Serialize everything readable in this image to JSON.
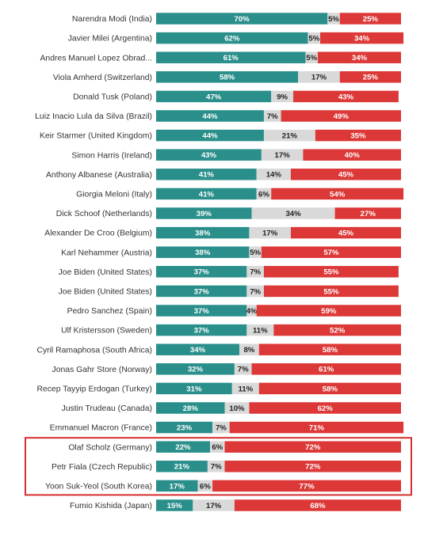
{
  "chart_data": {
    "type": "bar",
    "stacked": true,
    "orientation": "horizontal",
    "colors": {
      "approve": "#2a8f8b",
      "neutral": "#d9d9d9",
      "disapprove": "#dd3838",
      "highlight_border": "#d62e2e"
    },
    "categories": [
      "Narendra Modi (India)",
      "Javier Milei (Argentina)",
      "Andres Manuel Lopez Obrad...",
      "Viola Amherd (Switzerland)",
      "Donald Tusk (Poland)",
      "Luiz Inacio Lula da Silva (Brazil)",
      "Keir Starmer (United Kingdom)",
      "Simon Harris (Ireland)",
      "Anthony Albanese (Australia)",
      "Giorgia Meloni (Italy)",
      "Dick Schoof (Netherlands)",
      "Alexander De Croo (Belgium)",
      "Karl Nehammer (Austria)",
      "Joe Biden (United States)",
      "Joe Biden (United States)",
      "Pedro Sanchez (Spain)",
      "Ulf Kristersson (Sweden)",
      "Cyril Ramaphosa (South Africa)",
      "Jonas Gahr Store (Norway)",
      "Recep Tayyip Erdogan (Turkey)",
      "Justin Trudeau (Canada)",
      "Emmanuel Macron (France)",
      "Olaf Scholz (Germany)",
      "Petr Fiala (Czech Republic)",
      "Yoon Suk-Yeol (South Korea)",
      "Fumio Kishida (Japan)"
    ],
    "series": [
      {
        "values": [
          70,
          62,
          61,
          58,
          47,
          44,
          44,
          43,
          41,
          41,
          39,
          38,
          38,
          37,
          37,
          37,
          37,
          34,
          32,
          31,
          28,
          23,
          22,
          21,
          17,
          15
        ]
      },
      {
        "values": [
          5,
          5,
          5,
          17,
          9,
          7,
          21,
          17,
          14,
          6,
          34,
          17,
          5,
          7,
          7,
          4,
          11,
          8,
          7,
          11,
          10,
          7,
          6,
          7,
          6,
          17
        ]
      },
      {
        "values": [
          25,
          34,
          34,
          25,
          43,
          49,
          35,
          40,
          45,
          54,
          27,
          45,
          57,
          55,
          55,
          59,
          52,
          58,
          61,
          58,
          62,
          71,
          72,
          72,
          77,
          68
        ]
      }
    ],
    "value_suffix": "%",
    "highlighted_rows": [
      23,
      24,
      25
    ],
    "xlim": [
      0,
      100
    ],
    "title": "",
    "xlabel": "",
    "ylabel": "",
    "grid": false,
    "legend": "none"
  }
}
